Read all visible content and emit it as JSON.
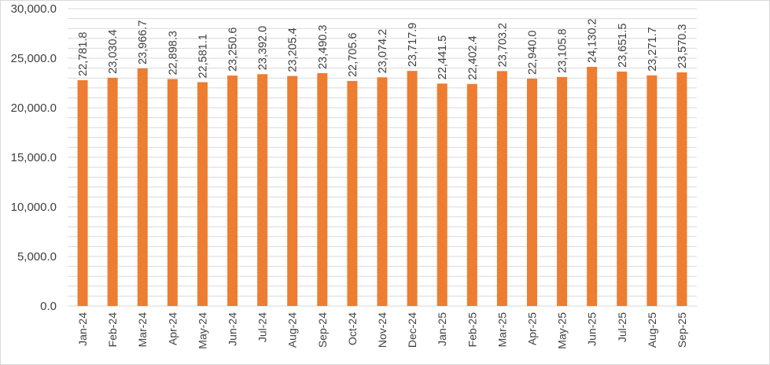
{
  "chart_data": {
    "type": "bar",
    "title": "",
    "xlabel": "",
    "ylabel": "",
    "categories": [
      "Jan-24",
      "Feb-24",
      "Mar-24",
      "Apr-24",
      "May-24",
      "Jun-24",
      "Jul-24",
      "Aug-24",
      "Sep-24",
      "Oct-24",
      "Nov-24",
      "Dec-24",
      "Jan-25",
      "Feb-25",
      "Mar-25",
      "Apr-25",
      "May-25",
      "Jun-25",
      "Jul-25",
      "Aug-25",
      "Sep-25"
    ],
    "values": [
      22781.8,
      23030.4,
      23966.7,
      22898.3,
      22581.1,
      23250.6,
      23392.0,
      23205.4,
      23490.3,
      22705.6,
      23074.2,
      23717.9,
      22441.5,
      22402.4,
      23703.2,
      22940.0,
      23105.8,
      24130.2,
      23651.5,
      23271.7,
      23570.3
    ],
    "data_labels": [
      "22,781.8",
      "23,030.4",
      "23,966.7",
      "22,898.3",
      "22,581.1",
      "23,250.6",
      "23,392.0",
      "23,205.4",
      "23,490.3",
      "22,705.6",
      "23,074.2",
      "23,717.9",
      "22,441.5",
      "22,402.4",
      "23,703.2",
      "22,940.0",
      "23,105.8",
      "24,130.2",
      "23,651.5",
      "23,271.7",
      "23,570.3"
    ],
    "ylim": [
      0,
      30000
    ],
    "yticks": [
      0,
      5000,
      10000,
      15000,
      20000,
      25000,
      30000
    ],
    "ytick_labels": [
      "0.0",
      "5,000.0",
      "10,000.0",
      "15,000.0",
      "20,000.0",
      "25,000.0",
      "30,000.0"
    ],
    "grid": true,
    "legend": "none",
    "bar_color": "#ed7d31"
  }
}
